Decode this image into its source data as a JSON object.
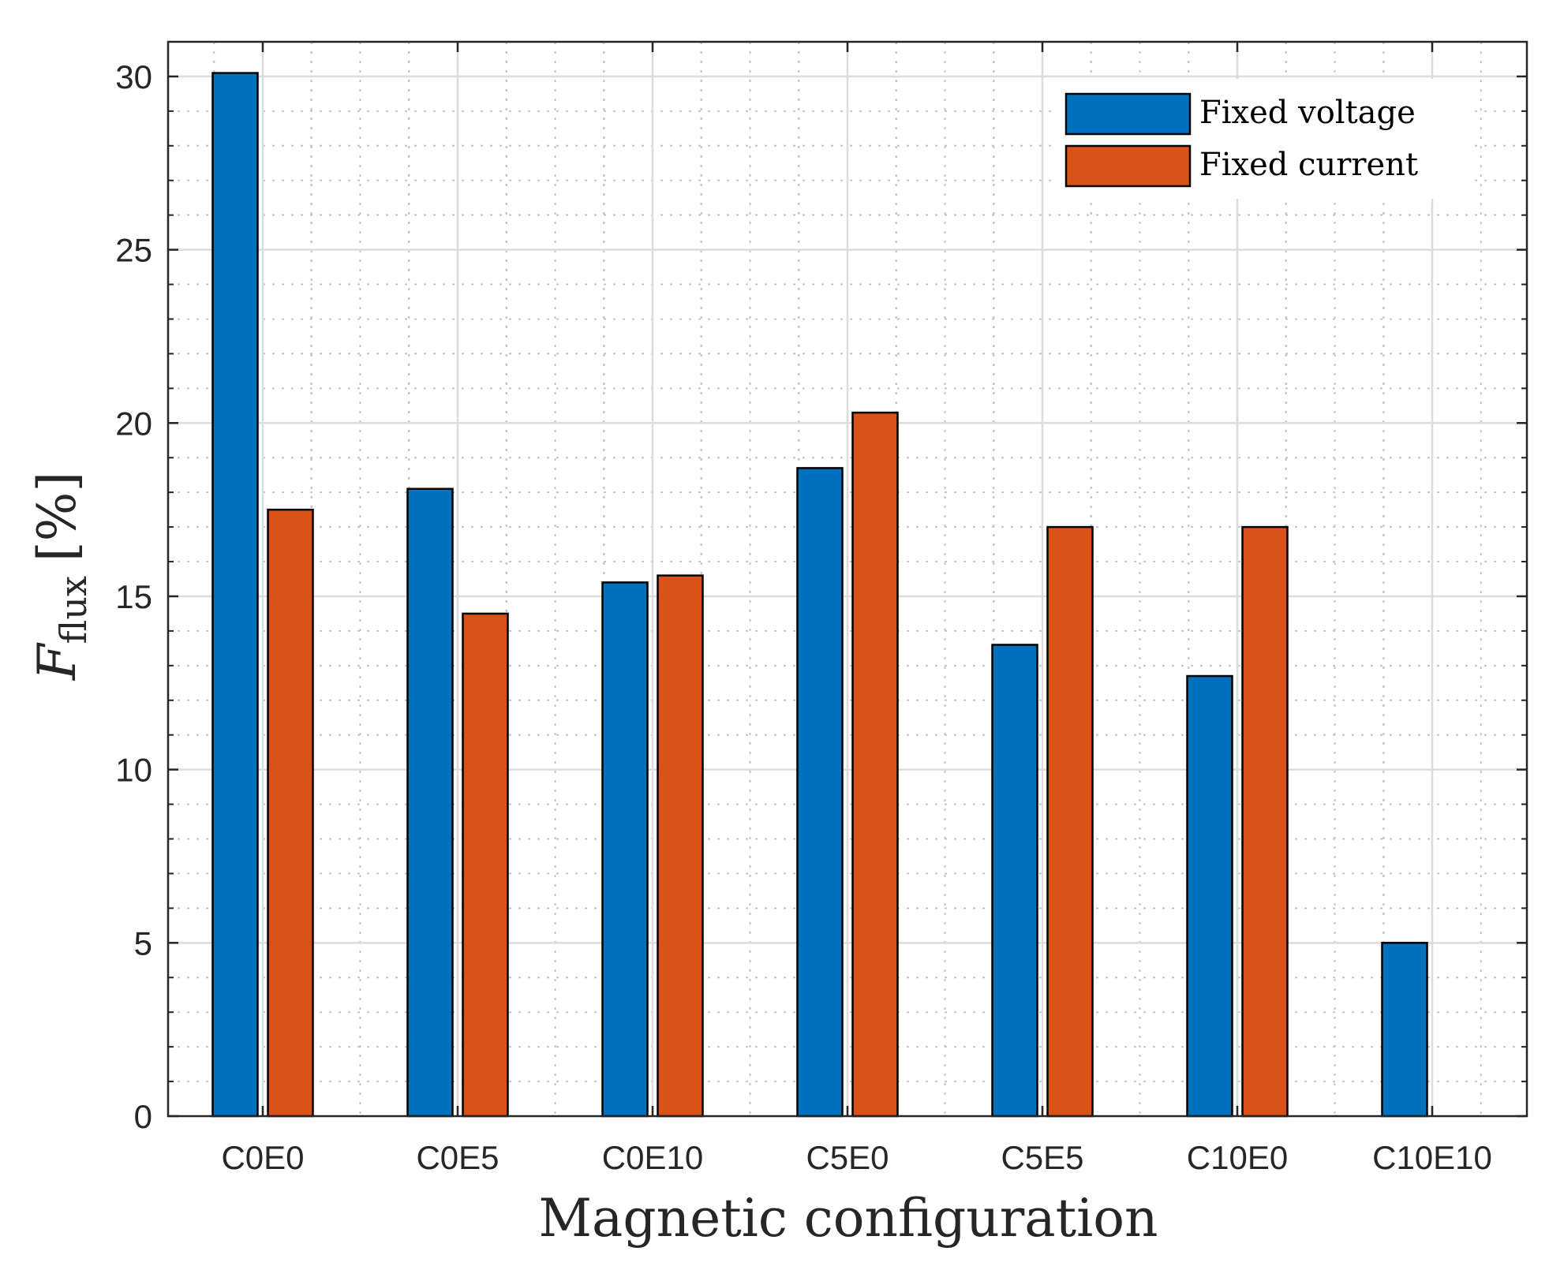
{
  "chart_data": {
    "type": "bar",
    "title": "",
    "xlabel": "Magnetic configuration",
    "ylabel_main": "F",
    "ylabel_sub": "flux",
    "ylabel_unit": "[%]",
    "categories": [
      "C0E0",
      "C0E5",
      "C0E10",
      "C5E0",
      "C5E5",
      "C10E0",
      "C10E10"
    ],
    "series": [
      {
        "name": "Fixed voltage",
        "color": "#0072BD",
        "values": [
          30.1,
          18.1,
          15.4,
          18.7,
          13.6,
          12.7,
          5.0
        ]
      },
      {
        "name": "Fixed current",
        "color": "#D95319",
        "values": [
          17.5,
          14.5,
          15.6,
          20.3,
          17.0,
          17.0,
          0
        ]
      }
    ],
    "ylim": [
      0,
      31
    ],
    "yticks": [
      0,
      5,
      10,
      15,
      20,
      25,
      30
    ],
    "grid": true,
    "minor_grid": true,
    "legend_position": "top-right"
  }
}
